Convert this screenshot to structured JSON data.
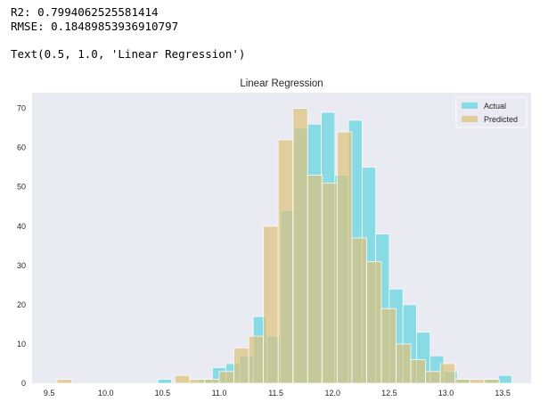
{
  "output": {
    "r2_line": "R2: 0.7994062525581414",
    "rmse_line": "RMSE: 0.18489853936910797",
    "text_repr": "Text(0.5, 1.0, 'Linear Regression')"
  },
  "chart_data": {
    "type": "bar",
    "title": "Linear Regression",
    "xlabel": "",
    "ylabel": "",
    "xlim": [
      9.35,
      13.75
    ],
    "ylim": [
      0,
      74
    ],
    "xticks": [
      9.5,
      10.0,
      10.5,
      11.0,
      11.5,
      12.0,
      12.5,
      13.0,
      13.5
    ],
    "xtick_labels": [
      "9.5",
      "10.0",
      "10.5",
      "11.0",
      "11.5",
      "12.0",
      "12.5",
      "13.0",
      "13.5"
    ],
    "yticks": [
      0,
      10,
      20,
      30,
      40,
      50,
      60,
      70
    ],
    "ytick_labels": [
      "0",
      "10",
      "20",
      "30",
      "40",
      "50",
      "60",
      "70"
    ],
    "grid": false,
    "legend_position": "top-right",
    "colors": {
      "background": "#eaeaf2",
      "actual": "#5ed3e0",
      "predicted": "#ddc27c",
      "overlap": "#a6c68f"
    },
    "series": [
      {
        "name": "Actual",
        "bin_edges": [
          10.46,
          10.58,
          10.7,
          10.82,
          10.94,
          11.06,
          11.18,
          11.3,
          11.42,
          11.54,
          11.66,
          11.78,
          11.9,
          12.02,
          12.14,
          12.26,
          12.38,
          12.5,
          12.62,
          12.74,
          12.86,
          12.98,
          13.1,
          13.22,
          13.34,
          13.46,
          13.58
        ],
        "values": [
          1,
          0,
          0,
          1,
          4,
          5,
          7,
          17,
          12,
          44,
          65,
          66,
          69,
          53,
          67,
          55,
          38,
          24,
          20,
          13,
          7,
          3,
          1,
          0,
          1,
          2
        ]
      },
      {
        "name": "Predicted",
        "bin_edges": [
          9.57,
          9.7,
          9.83,
          9.96,
          10.09,
          10.22,
          10.35,
          10.48,
          10.61,
          10.74,
          10.87,
          11.0,
          11.13,
          11.26,
          11.39,
          11.52,
          11.65,
          11.78,
          11.91,
          12.04,
          12.17,
          12.3,
          12.43,
          12.56,
          12.69,
          12.82,
          12.95,
          13.08,
          13.21,
          13.34,
          13.47
        ],
        "values": [
          1,
          0,
          0,
          0,
          0,
          0,
          0,
          0,
          2,
          1,
          1,
          3,
          9,
          12,
          40,
          62,
          70,
          53,
          51,
          64,
          37,
          31,
          19,
          10,
          6,
          3,
          5,
          1,
          1,
          1
        ]
      }
    ]
  }
}
